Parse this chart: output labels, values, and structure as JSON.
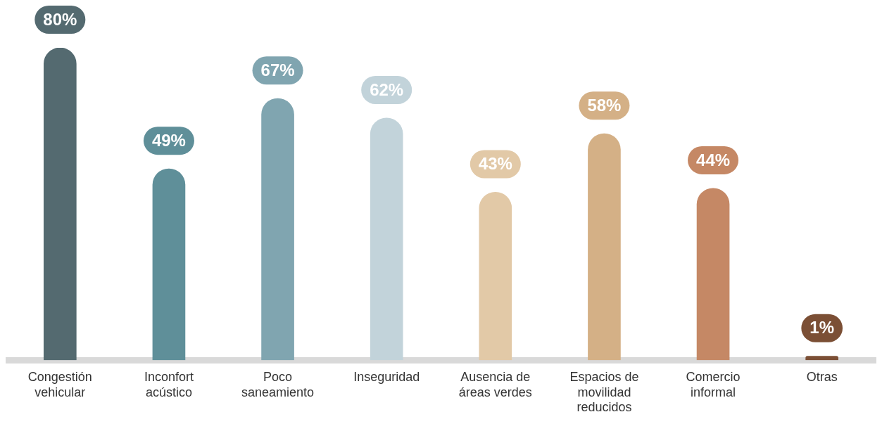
{
  "chart_data": {
    "type": "bar",
    "categories": [
      "Congestión vehicular",
      "Inconfort acústico",
      "Poco saneamiento",
      "Inseguridad",
      "Ausencia de áreas verdes",
      "Espacios de movilidad reducidos",
      "Comercio informal",
      "Otras"
    ],
    "values": [
      80,
      49,
      67,
      62,
      43,
      58,
      44,
      1
    ],
    "colors": [
      "#546a70",
      "#5f8f99",
      "#80a5b0",
      "#c2d3da",
      "#e2c9a7",
      "#d4b086",
      "#c58865",
      "#7b4f35"
    ],
    "value_labels": [
      "80%",
      "49%",
      "67%",
      "62%",
      "43%",
      "58%",
      "44%",
      "1%"
    ],
    "grid": false,
    "legend": false
  }
}
